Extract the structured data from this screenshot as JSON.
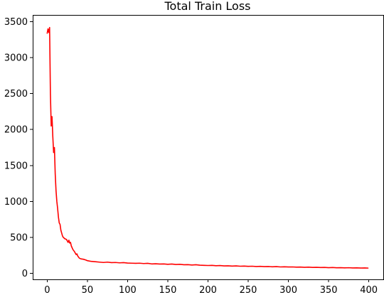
{
  "chart_data": {
    "type": "line",
    "title": "Total Train Loss",
    "xlabel": "",
    "ylabel": "",
    "xlim": [
      -18,
      418
    ],
    "ylim": [
      -85,
      3585
    ],
    "x_ticks": [
      0,
      50,
      100,
      150,
      200,
      250,
      300,
      350,
      400
    ],
    "y_ticks": [
      0,
      500,
      1000,
      1500,
      2000,
      2500,
      3000,
      3500
    ],
    "grid": false,
    "series": [
      {
        "color": "#ff0000",
        "points": [
          [
            0,
            3340
          ],
          [
            1,
            3400
          ],
          [
            2,
            3350
          ],
          [
            3,
            3420
          ],
          [
            4,
            2500
          ],
          [
            5,
            2050
          ],
          [
            6,
            2180
          ],
          [
            7,
            1900
          ],
          [
            8,
            1680
          ],
          [
            9,
            1750
          ],
          [
            10,
            1380
          ],
          [
            11,
            1150
          ],
          [
            12,
            1000
          ],
          [
            13,
            900
          ],
          [
            14,
            780
          ],
          [
            15,
            700
          ],
          [
            16,
            680
          ],
          [
            17,
            600
          ],
          [
            18,
            560
          ],
          [
            19,
            520
          ],
          [
            20,
            500
          ],
          [
            22,
            480
          ],
          [
            24,
            470
          ],
          [
            26,
            430
          ],
          [
            27,
            460
          ],
          [
            28,
            420
          ],
          [
            29,
            430
          ],
          [
            30,
            380
          ],
          [
            32,
            330
          ],
          [
            34,
            300
          ],
          [
            35,
            280
          ],
          [
            36,
            260
          ],
          [
            37,
            270
          ],
          [
            38,
            240
          ],
          [
            40,
            210
          ],
          [
            42,
            200
          ],
          [
            45,
            195
          ],
          [
            48,
            185
          ],
          [
            50,
            175
          ],
          [
            55,
            165
          ],
          [
            60,
            160
          ],
          [
            65,
            155
          ],
          [
            70,
            150
          ],
          [
            75,
            155
          ],
          [
            80,
            148
          ],
          [
            85,
            150
          ],
          [
            90,
            145
          ],
          [
            95,
            148
          ],
          [
            100,
            142
          ],
          [
            105,
            140
          ],
          [
            110,
            138
          ],
          [
            115,
            140
          ],
          [
            120,
            135
          ],
          [
            125,
            138
          ],
          [
            130,
            130
          ],
          [
            135,
            132
          ],
          [
            140,
            128
          ],
          [
            145,
            130
          ],
          [
            150,
            125
          ],
          [
            155,
            128
          ],
          [
            160,
            122
          ],
          [
            165,
            125
          ],
          [
            170,
            118
          ],
          [
            175,
            120
          ],
          [
            180,
            115
          ],
          [
            185,
            118
          ],
          [
            190,
            112
          ],
          [
            195,
            110
          ],
          [
            200,
            108
          ],
          [
            205,
            110
          ],
          [
            210,
            105
          ],
          [
            215,
            107
          ],
          [
            220,
            102
          ],
          [
            225,
            104
          ],
          [
            230,
            100
          ],
          [
            235,
            102
          ],
          [
            240,
            98
          ],
          [
            245,
            100
          ],
          [
            250,
            96
          ],
          [
            255,
            98
          ],
          [
            260,
            94
          ],
          [
            265,
            96
          ],
          [
            270,
            92
          ],
          [
            275,
            94
          ],
          [
            280,
            90
          ],
          [
            285,
            92
          ],
          [
            290,
            88
          ],
          [
            295,
            90
          ],
          [
            300,
            87
          ],
          [
            305,
            88
          ],
          [
            310,
            85
          ],
          [
            315,
            86
          ],
          [
            320,
            83
          ],
          [
            325,
            85
          ],
          [
            330,
            81
          ],
          [
            335,
            83
          ],
          [
            340,
            80
          ],
          [
            345,
            81
          ],
          [
            350,
            78
          ],
          [
            355,
            80
          ],
          [
            360,
            76
          ],
          [
            365,
            78
          ],
          [
            370,
            75
          ],
          [
            375,
            77
          ],
          [
            380,
            74
          ],
          [
            385,
            75
          ],
          [
            390,
            73
          ],
          [
            395,
            74
          ],
          [
            399,
            72
          ]
        ]
      }
    ]
  }
}
